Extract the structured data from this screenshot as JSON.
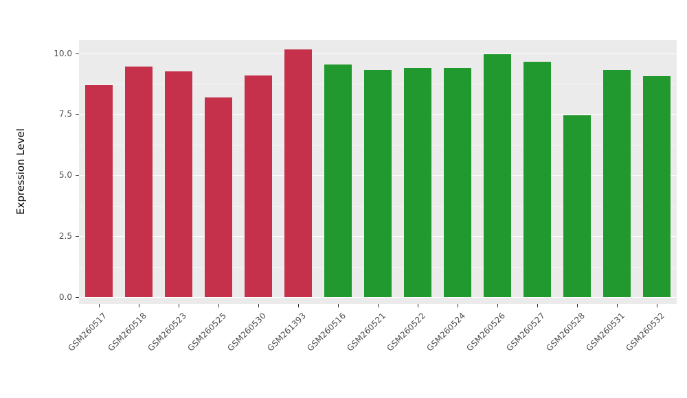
{
  "figure": {
    "background": "#FFFFFF",
    "panel_background": "#EBEBEB",
    "grid_major_color": "#FFFFFF",
    "grid_minor_color": "#F6F6F6",
    "axis_text_color": "#4D4D4D",
    "axis_title_color": "#000000"
  },
  "chart_data": {
    "type": "bar",
    "title": "",
    "xlabel": "",
    "ylabel": "Expression Level",
    "ylim": [
      0,
      10.5
    ],
    "yticks": [
      0.0,
      2.5,
      5.0,
      7.5,
      10.0
    ],
    "ytick_labels": [
      "0.0",
      "2.5",
      "5.0",
      "7.5",
      "10.0"
    ],
    "grid": true,
    "legend": "none",
    "categories": [
      "GSM260517",
      "GSM260518",
      "GSM260523",
      "GSM260525",
      "GSM260530",
      "GSM261393",
      "GSM260516",
      "GSM260521",
      "GSM260522",
      "GSM260524",
      "GSM260526",
      "GSM260527",
      "GSM260528",
      "GSM260531",
      "GSM260532"
    ],
    "values": [
      8.7,
      9.45,
      9.25,
      8.2,
      9.1,
      10.15,
      9.55,
      9.3,
      9.4,
      9.4,
      9.95,
      9.65,
      7.45,
      9.3,
      9.05
    ],
    "bar_colors": [
      "#C5314B",
      "#C5314B",
      "#C5314B",
      "#C5314B",
      "#C5314B",
      "#C5314B",
      "#22992E",
      "#22992E",
      "#22992E",
      "#22992E",
      "#22992E",
      "#22992E",
      "#22992E",
      "#22992E",
      "#22992E"
    ],
    "group_colors": {
      "red_group": "#C5314B",
      "green_group": "#22992E"
    }
  }
}
